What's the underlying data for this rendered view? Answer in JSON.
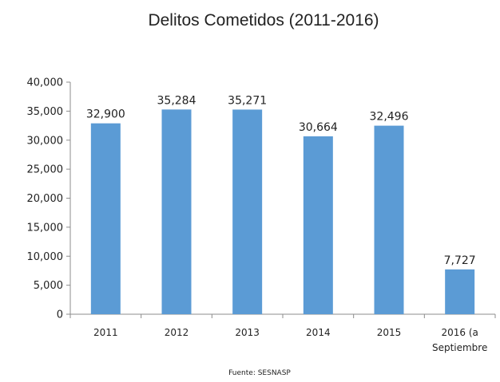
{
  "chart_data": {
    "type": "bar",
    "title": "Delitos Cometidos (2011-2016)",
    "categories": [
      "2011",
      "2012",
      "2013",
      "2014",
      "2015",
      "2016 (a Septiembre"
    ],
    "values": [
      32900,
      35284,
      35271,
      30664,
      32496,
      7727
    ],
    "data_labels": [
      "32,900",
      "35,284",
      "35,271",
      "30,664",
      "32,496",
      "7,727"
    ],
    "yticks": [
      "0",
      "5,000",
      "10,000",
      "15,000",
      "20,000",
      "25,000",
      "30,000",
      "35,000",
      "40,000"
    ],
    "ylim": [
      0,
      40000
    ],
    "grid": false,
    "legend": "none",
    "bar_color": "#5B9BD5",
    "source": "Fuente: SESNASP"
  }
}
